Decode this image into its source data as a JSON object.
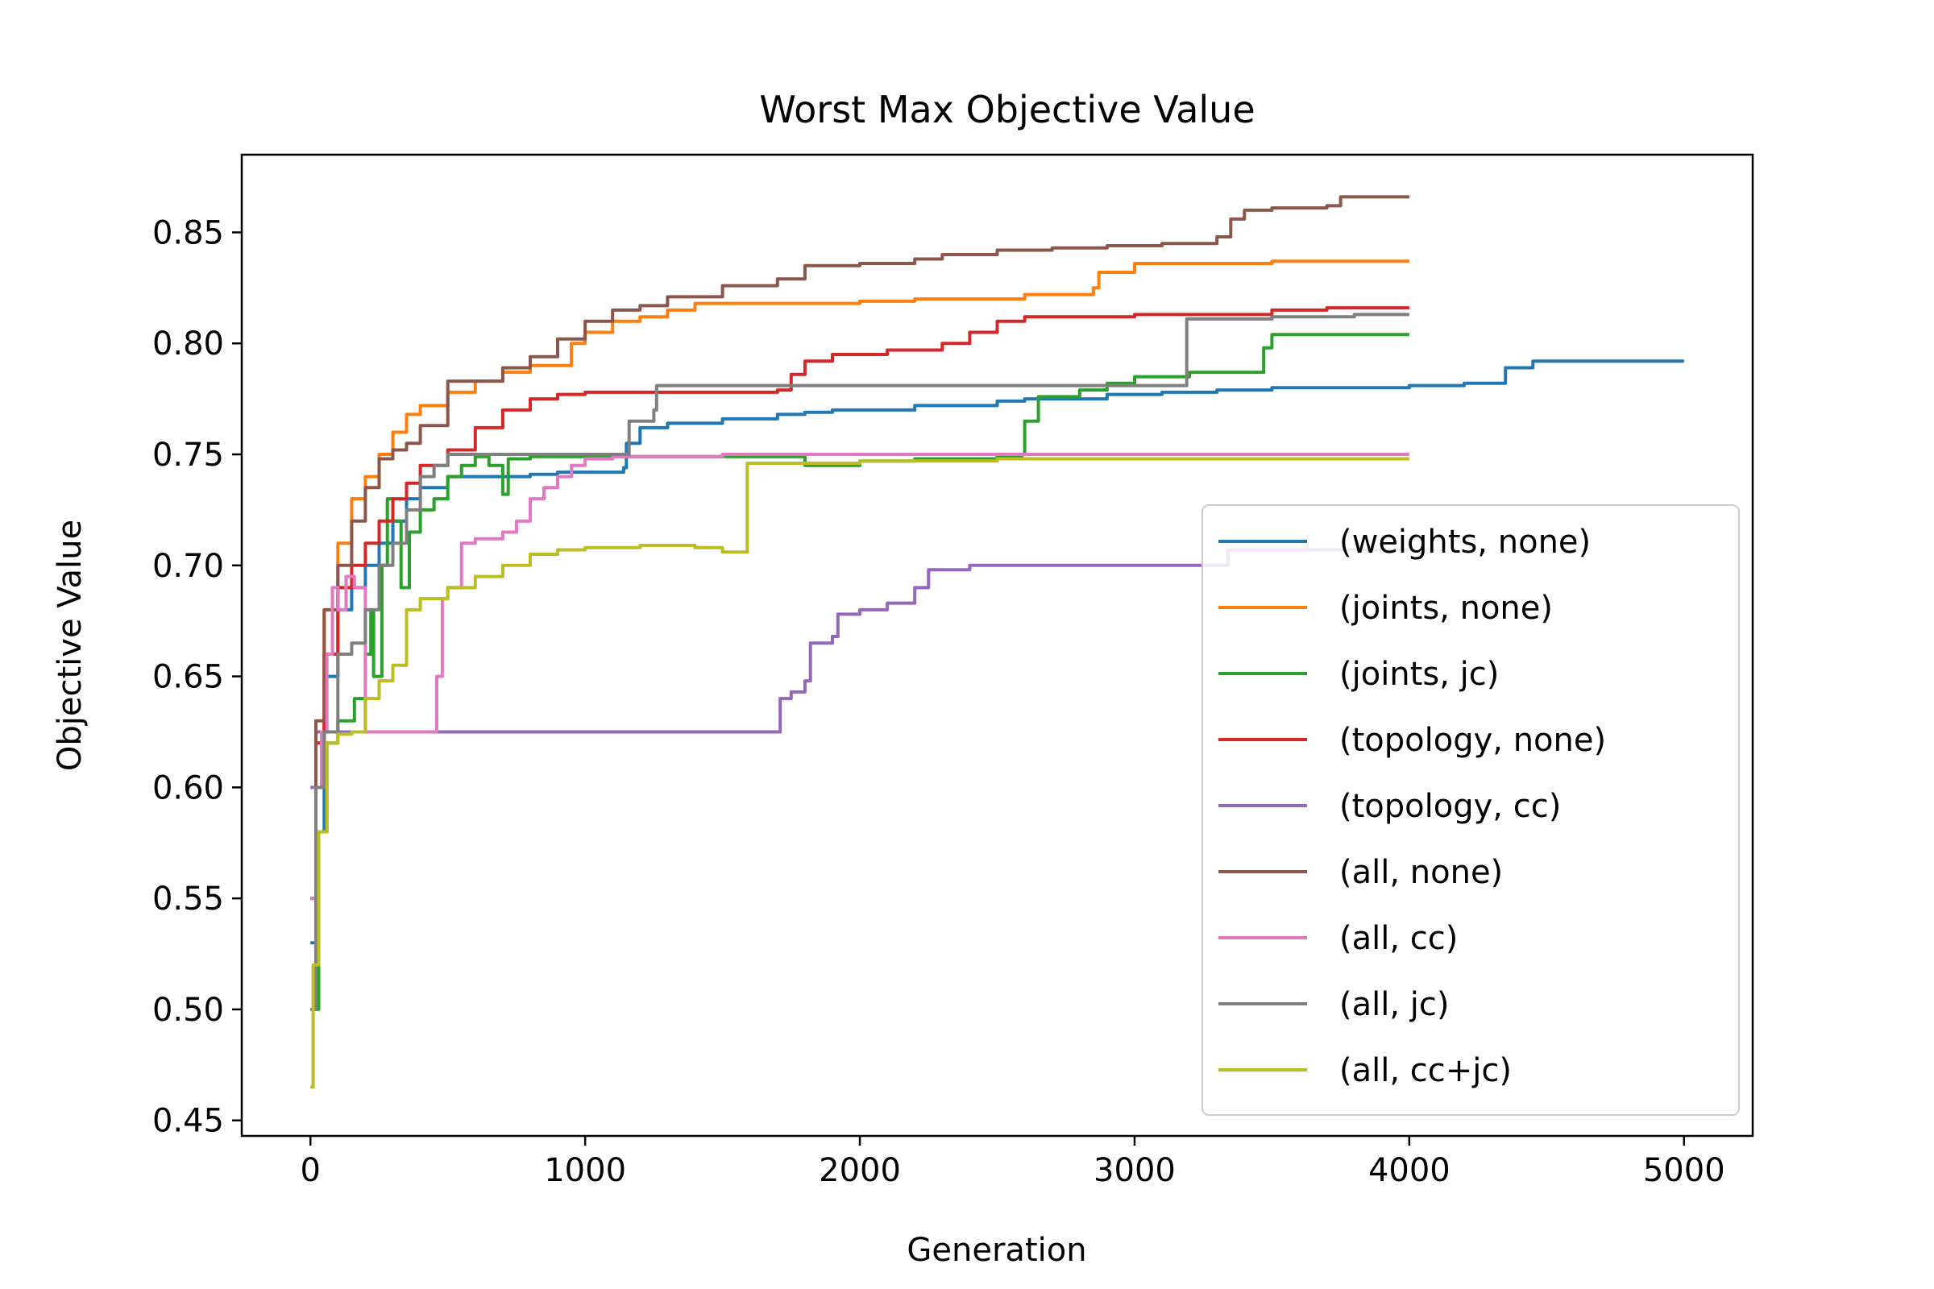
{
  "chart_data": {
    "type": "line",
    "title": "Worst Max Objective Value",
    "xlabel": "Generation",
    "ylabel": "Objective Value",
    "xlim": [
      -250,
      5250
    ],
    "ylim": [
      0.443,
      0.885
    ],
    "xticks": [
      0,
      1000,
      2000,
      3000,
      4000,
      5000
    ],
    "yticks": [
      0.45,
      0.5,
      0.55,
      0.6,
      0.65,
      0.7,
      0.75,
      0.8,
      0.85
    ],
    "grid": false,
    "legend_position": "center-right",
    "series": [
      {
        "name": "(weights, none)",
        "color": "#1f77b4",
        "points": [
          [
            0,
            0.53
          ],
          [
            20,
            0.58
          ],
          [
            50,
            0.65
          ],
          [
            100,
            0.68
          ],
          [
            150,
            0.69
          ],
          [
            200,
            0.7
          ],
          [
            250,
            0.71
          ],
          [
            300,
            0.72
          ],
          [
            350,
            0.73
          ],
          [
            400,
            0.735
          ],
          [
            500,
            0.74
          ],
          [
            600,
            0.74
          ],
          [
            700,
            0.74
          ],
          [
            800,
            0.741
          ],
          [
            900,
            0.742
          ],
          [
            1000,
            0.742
          ],
          [
            1140,
            0.744
          ],
          [
            1150,
            0.755
          ],
          [
            1200,
            0.762
          ],
          [
            1300,
            0.764
          ],
          [
            1500,
            0.766
          ],
          [
            1700,
            0.768
          ],
          [
            1800,
            0.769
          ],
          [
            1900,
            0.77
          ],
          [
            2000,
            0.77
          ],
          [
            2200,
            0.772
          ],
          [
            2500,
            0.774
          ],
          [
            2600,
            0.775
          ],
          [
            2900,
            0.777
          ],
          [
            3100,
            0.778
          ],
          [
            3300,
            0.779
          ],
          [
            3500,
            0.78
          ],
          [
            4000,
            0.781
          ],
          [
            4200,
            0.782
          ],
          [
            4350,
            0.789
          ],
          [
            4450,
            0.792
          ],
          [
            5000,
            0.792
          ]
        ]
      },
      {
        "name": "(joints, none)",
        "color": "#ff7f0e",
        "points": [
          [
            0,
            0.55
          ],
          [
            20,
            0.62
          ],
          [
            50,
            0.68
          ],
          [
            100,
            0.71
          ],
          [
            150,
            0.73
          ],
          [
            200,
            0.74
          ],
          [
            250,
            0.75
          ],
          [
            300,
            0.76
          ],
          [
            350,
            0.768
          ],
          [
            400,
            0.772
          ],
          [
            500,
            0.778
          ],
          [
            600,
            0.783
          ],
          [
            700,
            0.787
          ],
          [
            800,
            0.79
          ],
          [
            950,
            0.8
          ],
          [
            1000,
            0.805
          ],
          [
            1100,
            0.81
          ],
          [
            1200,
            0.812
          ],
          [
            1300,
            0.815
          ],
          [
            1400,
            0.818
          ],
          [
            1700,
            0.818
          ],
          [
            2000,
            0.819
          ],
          [
            2200,
            0.82
          ],
          [
            2600,
            0.822
          ],
          [
            2850,
            0.825
          ],
          [
            2870,
            0.832
          ],
          [
            3000,
            0.836
          ],
          [
            3500,
            0.837
          ],
          [
            4000,
            0.837
          ]
        ]
      },
      {
        "name": "(joints, jc)",
        "color": "#2ca02c",
        "points": [
          [
            0,
            0.5
          ],
          [
            30,
            0.58
          ],
          [
            60,
            0.62
          ],
          [
            100,
            0.63
          ],
          [
            160,
            0.64
          ],
          [
            200,
            0.66
          ],
          [
            220,
            0.68
          ],
          [
            230,
            0.65
          ],
          [
            260,
            0.7
          ],
          [
            280,
            0.73
          ],
          [
            300,
            0.72
          ],
          [
            330,
            0.69
          ],
          [
            360,
            0.715
          ],
          [
            400,
            0.725
          ],
          [
            450,
            0.73
          ],
          [
            500,
            0.74
          ],
          [
            550,
            0.745
          ],
          [
            600,
            0.749
          ],
          [
            650,
            0.745
          ],
          [
            700,
            0.732
          ],
          [
            720,
            0.748
          ],
          [
            800,
            0.749
          ],
          [
            1000,
            0.749
          ],
          [
            1500,
            0.749
          ],
          [
            1700,
            0.749
          ],
          [
            1800,
            0.745
          ],
          [
            2000,
            0.747
          ],
          [
            2200,
            0.748
          ],
          [
            2500,
            0.749
          ],
          [
            2590,
            0.75
          ],
          [
            2600,
            0.765
          ],
          [
            2650,
            0.776
          ],
          [
            2800,
            0.779
          ],
          [
            2900,
            0.782
          ],
          [
            3000,
            0.785
          ],
          [
            3200,
            0.787
          ],
          [
            3450,
            0.787
          ],
          [
            3470,
            0.798
          ],
          [
            3500,
            0.804
          ],
          [
            4000,
            0.804
          ]
        ]
      },
      {
        "name": "(topology, none)",
        "color": "#d62728",
        "points": [
          [
            0,
            0.55
          ],
          [
            20,
            0.62
          ],
          [
            50,
            0.66
          ],
          [
            100,
            0.69
          ],
          [
            150,
            0.7
          ],
          [
            200,
            0.71
          ],
          [
            250,
            0.72
          ],
          [
            300,
            0.73
          ],
          [
            350,
            0.737
          ],
          [
            400,
            0.745
          ],
          [
            500,
            0.752
          ],
          [
            600,
            0.762
          ],
          [
            700,
            0.77
          ],
          [
            800,
            0.775
          ],
          [
            900,
            0.777
          ],
          [
            1000,
            0.778
          ],
          [
            1200,
            0.778
          ],
          [
            1500,
            0.778
          ],
          [
            1700,
            0.779
          ],
          [
            1750,
            0.786
          ],
          [
            1800,
            0.792
          ],
          [
            1900,
            0.795
          ],
          [
            2100,
            0.797
          ],
          [
            2300,
            0.8
          ],
          [
            2400,
            0.805
          ],
          [
            2500,
            0.81
          ],
          [
            2600,
            0.812
          ],
          [
            3000,
            0.813
          ],
          [
            3500,
            0.815
          ],
          [
            3700,
            0.816
          ],
          [
            4000,
            0.816
          ]
        ]
      },
      {
        "name": "(topology, cc)",
        "color": "#9467bd",
        "points": [
          [
            0,
            0.6
          ],
          [
            20,
            0.625
          ],
          [
            100,
            0.625
          ],
          [
            500,
            0.625
          ],
          [
            1000,
            0.625
          ],
          [
            1500,
            0.625
          ],
          [
            1700,
            0.625
          ],
          [
            1710,
            0.64
          ],
          [
            1750,
            0.643
          ],
          [
            1800,
            0.648
          ],
          [
            1820,
            0.665
          ],
          [
            1900,
            0.668
          ],
          [
            1920,
            0.678
          ],
          [
            2000,
            0.68
          ],
          [
            2100,
            0.683
          ],
          [
            2200,
            0.69
          ],
          [
            2250,
            0.698
          ],
          [
            2400,
            0.7
          ],
          [
            2500,
            0.7
          ],
          [
            3000,
            0.7
          ],
          [
            3200,
            0.7
          ],
          [
            3300,
            0.7
          ],
          [
            3340,
            0.707
          ],
          [
            3500,
            0.707
          ],
          [
            4000,
            0.707
          ]
        ]
      },
      {
        "name": "(all, none)",
        "color": "#8c564b",
        "points": [
          [
            0,
            0.55
          ],
          [
            20,
            0.63
          ],
          [
            50,
            0.68
          ],
          [
            100,
            0.7
          ],
          [
            150,
            0.72
          ],
          [
            200,
            0.735
          ],
          [
            250,
            0.748
          ],
          [
            300,
            0.752
          ],
          [
            350,
            0.755
          ],
          [
            400,
            0.763
          ],
          [
            500,
            0.783
          ],
          [
            600,
            0.783
          ],
          [
            700,
            0.789
          ],
          [
            800,
            0.794
          ],
          [
            900,
            0.802
          ],
          [
            1000,
            0.81
          ],
          [
            1100,
            0.815
          ],
          [
            1200,
            0.817
          ],
          [
            1300,
            0.821
          ],
          [
            1500,
            0.826
          ],
          [
            1700,
            0.829
          ],
          [
            1800,
            0.835
          ],
          [
            2000,
            0.836
          ],
          [
            2200,
            0.838
          ],
          [
            2300,
            0.84
          ],
          [
            2500,
            0.842
          ],
          [
            2700,
            0.843
          ],
          [
            2900,
            0.844
          ],
          [
            3100,
            0.845
          ],
          [
            3300,
            0.848
          ],
          [
            3350,
            0.856
          ],
          [
            3400,
            0.86
          ],
          [
            3500,
            0.861
          ],
          [
            3700,
            0.862
          ],
          [
            3750,
            0.866
          ],
          [
            4000,
            0.866
          ]
        ]
      },
      {
        "name": "(all, cc)",
        "color": "#e377c2",
        "points": [
          [
            0,
            0.55
          ],
          [
            20,
            0.6
          ],
          [
            40,
            0.625
          ],
          [
            60,
            0.66
          ],
          [
            80,
            0.69
          ],
          [
            100,
            0.68
          ],
          [
            130,
            0.695
          ],
          [
            160,
            0.69
          ],
          [
            200,
            0.625
          ],
          [
            300,
            0.625
          ],
          [
            400,
            0.625
          ],
          [
            440,
            0.625
          ],
          [
            460,
            0.65
          ],
          [
            480,
            0.685
          ],
          [
            500,
            0.69
          ],
          [
            550,
            0.71
          ],
          [
            600,
            0.712
          ],
          [
            700,
            0.715
          ],
          [
            750,
            0.72
          ],
          [
            800,
            0.73
          ],
          [
            850,
            0.735
          ],
          [
            900,
            0.74
          ],
          [
            950,
            0.745
          ],
          [
            1000,
            0.748
          ],
          [
            1100,
            0.749
          ],
          [
            1500,
            0.75
          ],
          [
            2000,
            0.75
          ],
          [
            3000,
            0.75
          ],
          [
            4000,
            0.75
          ]
        ]
      },
      {
        "name": "(all, jc)",
        "color": "#7f7f7f",
        "points": [
          [
            0,
            0.5
          ],
          [
            20,
            0.6
          ],
          [
            50,
            0.625
          ],
          [
            100,
            0.66
          ],
          [
            150,
            0.665
          ],
          [
            200,
            0.68
          ],
          [
            250,
            0.7
          ],
          [
            300,
            0.71
          ],
          [
            350,
            0.725
          ],
          [
            400,
            0.74
          ],
          [
            450,
            0.745
          ],
          [
            500,
            0.75
          ],
          [
            700,
            0.75
          ],
          [
            1000,
            0.75
          ],
          [
            1150,
            0.75
          ],
          [
            1160,
            0.765
          ],
          [
            1250,
            0.77
          ],
          [
            1260,
            0.781
          ],
          [
            1500,
            0.781
          ],
          [
            2000,
            0.781
          ],
          [
            2500,
            0.781
          ],
          [
            3000,
            0.781
          ],
          [
            3180,
            0.781
          ],
          [
            3190,
            0.811
          ],
          [
            3500,
            0.812
          ],
          [
            3800,
            0.813
          ],
          [
            4000,
            0.813
          ]
        ]
      },
      {
        "name": "(all, cc+jc)",
        "color": "#bcbd22",
        "points": [
          [
            0,
            0.465
          ],
          [
            10,
            0.52
          ],
          [
            30,
            0.58
          ],
          [
            60,
            0.62
          ],
          [
            100,
            0.624
          ],
          [
            150,
            0.625
          ],
          [
            200,
            0.64
          ],
          [
            250,
            0.648
          ],
          [
            300,
            0.655
          ],
          [
            350,
            0.68
          ],
          [
            400,
            0.685
          ],
          [
            500,
            0.69
          ],
          [
            600,
            0.695
          ],
          [
            700,
            0.7
          ],
          [
            800,
            0.705
          ],
          [
            900,
            0.707
          ],
          [
            1000,
            0.708
          ],
          [
            1200,
            0.709
          ],
          [
            1400,
            0.708
          ],
          [
            1500,
            0.706
          ],
          [
            1580,
            0.706
          ],
          [
            1590,
            0.746
          ],
          [
            2000,
            0.747
          ],
          [
            2500,
            0.748
          ],
          [
            3000,
            0.748
          ],
          [
            3500,
            0.748
          ],
          [
            4000,
            0.748
          ]
        ]
      }
    ]
  }
}
